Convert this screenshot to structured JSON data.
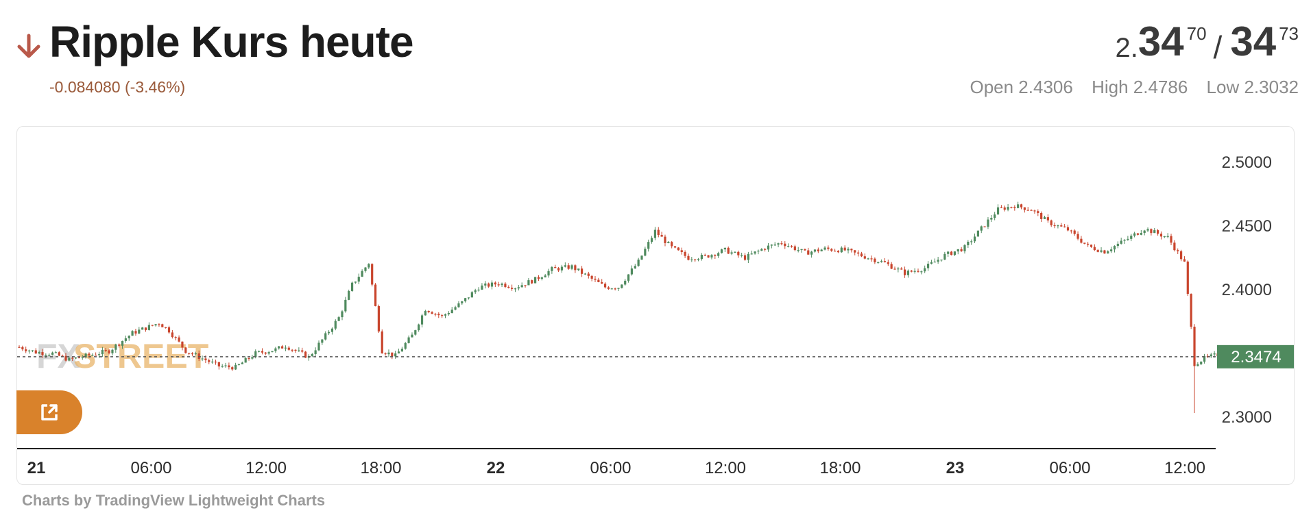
{
  "header": {
    "title": "Ripple Kurs heute",
    "change": "-0.084080 (-3.46%)",
    "direction_icon": "arrow-down-icon",
    "bid_prefix": "2.",
    "bid_big": "34",
    "bid_sup": "70",
    "separator": "/",
    "ask_big": "34",
    "ask_sup": "73",
    "open": "Open 2.4306",
    "high": "High 2.4786",
    "low": "Low 2.3032"
  },
  "watermark": {
    "part1": "FX",
    "part2": "STREET"
  },
  "external_link": {
    "icon": "external-link-icon"
  },
  "credit": "Charts by TradingView Lightweight Charts",
  "colors": {
    "up": "#4f8a5e",
    "down": "#c9452d",
    "accent": "#d9822b",
    "change": "#9a5a3a",
    "last_price_bg": "#4f8a5e"
  },
  "chart_data": {
    "type": "candlestick",
    "x_tick_labels": [
      "21",
      "06:00",
      "12:00",
      "18:00",
      "22",
      "06:00",
      "12:00",
      "18:00",
      "23",
      "06:00",
      "12:00"
    ],
    "bold_x_ticks": [
      "21",
      "22",
      "23"
    ],
    "y_tick_labels": [
      "2.5000",
      "2.4500",
      "2.4000",
      "2.3000"
    ],
    "ylim": [
      2.29,
      2.51
    ],
    "last_price": "2.3474",
    "close_path": [
      [
        0,
        2.355
      ],
      [
        5,
        2.351
      ],
      [
        10,
        2.35
      ],
      [
        15,
        2.345
      ],
      [
        20,
        2.348
      ],
      [
        27,
        2.352
      ],
      [
        34,
        2.366
      ],
      [
        42,
        2.374
      ],
      [
        45,
        2.368
      ],
      [
        50,
        2.352
      ],
      [
        55,
        2.346
      ],
      [
        60,
        2.34
      ],
      [
        65,
        2.339
      ],
      [
        71,
        2.35
      ],
      [
        77,
        2.353
      ],
      [
        80,
        2.356
      ],
      [
        87,
        2.347
      ],
      [
        92,
        2.364
      ],
      [
        96,
        2.378
      ],
      [
        100,
        2.404
      ],
      [
        105,
        2.421
      ],
      [
        109,
        2.352
      ],
      [
        113,
        2.348
      ],
      [
        118,
        2.364
      ],
      [
        122,
        2.385
      ],
      [
        127,
        2.379
      ],
      [
        133,
        2.39
      ],
      [
        138,
        2.402
      ],
      [
        144,
        2.405
      ],
      [
        149,
        2.402
      ],
      [
        155,
        2.408
      ],
      [
        160,
        2.416
      ],
      [
        166,
        2.418
      ],
      [
        171,
        2.41
      ],
      [
        176,
        2.402
      ],
      [
        180,
        2.402
      ],
      [
        186,
        2.422
      ],
      [
        191,
        2.446
      ],
      [
        196,
        2.433
      ],
      [
        201,
        2.425
      ],
      [
        206,
        2.426
      ],
      [
        212,
        2.431
      ],
      [
        218,
        2.425
      ],
      [
        224,
        2.433
      ],
      [
        229,
        2.437
      ],
      [
        236,
        2.429
      ],
      [
        242,
        2.432
      ],
      [
        248,
        2.431
      ],
      [
        254,
        2.426
      ],
      [
        260,
        2.421
      ],
      [
        266,
        2.413
      ],
      [
        272,
        2.417
      ],
      [
        278,
        2.427
      ],
      [
        284,
        2.433
      ],
      [
        290,
        2.451
      ],
      [
        294,
        2.463
      ],
      [
        299,
        2.466
      ],
      [
        304,
        2.463
      ],
      [
        309,
        2.453
      ],
      [
        315,
        2.447
      ],
      [
        321,
        2.434
      ],
      [
        326,
        2.43
      ],
      [
        333,
        2.44
      ],
      [
        338,
        2.448
      ],
      [
        345,
        2.441
      ],
      [
        350,
        2.421
      ],
      [
        352,
        2.37
      ],
      [
        353,
        2.342
      ],
      [
        356,
        2.346
      ],
      [
        360,
        2.349
      ]
    ]
  }
}
